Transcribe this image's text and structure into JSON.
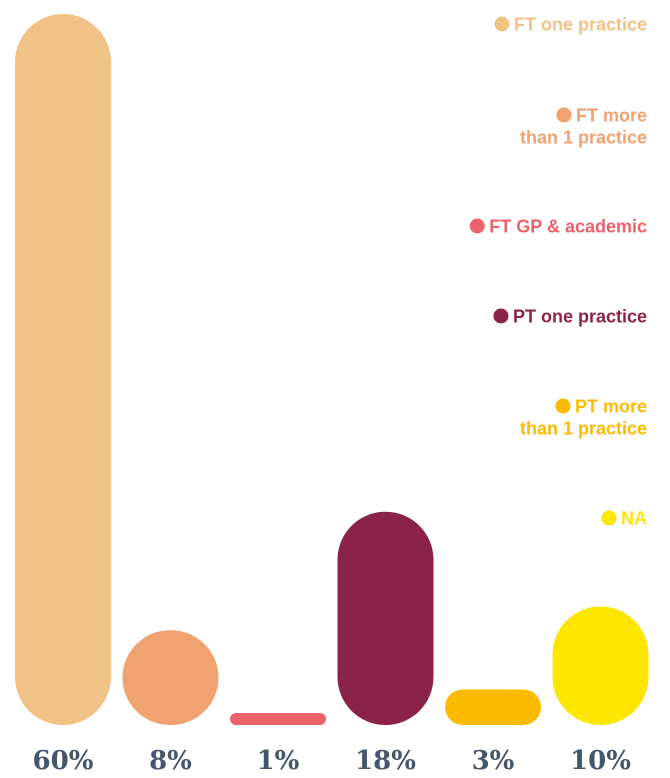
{
  "chart_data": {
    "type": "bar",
    "title": "",
    "xlabel": "",
    "ylabel": "",
    "categories": [
      "FT one practice",
      "FT  more than 1 practice",
      "FT GP & academic",
      "PT one practice",
      "PT  more than 1 practice",
      "NA"
    ],
    "values": [
      60,
      8,
      1,
      18,
      3,
      10
    ],
    "value_labels": [
      "60%",
      "8%",
      "1%",
      "18%",
      "3%",
      "10%"
    ],
    "ylim": [
      0,
      60
    ],
    "grid": false,
    "legend_position": "top-right",
    "colors": [
      "#f1c286",
      "#f0a270",
      "#ec626b",
      "#8b2249",
      "#fbbb00",
      "#fde600"
    ],
    "legend": [
      {
        "lines": [
          "FT one practice"
        ]
      },
      {
        "lines": [
          "FT  more",
          "than 1 practice"
        ]
      },
      {
        "lines": [
          "FT GP & academic"
        ]
      },
      {
        "lines": [
          "PT one practice"
        ]
      },
      {
        "lines": [
          "PT  more",
          "than 1 practice"
        ]
      },
      {
        "lines": [
          "NA"
        ]
      }
    ]
  }
}
